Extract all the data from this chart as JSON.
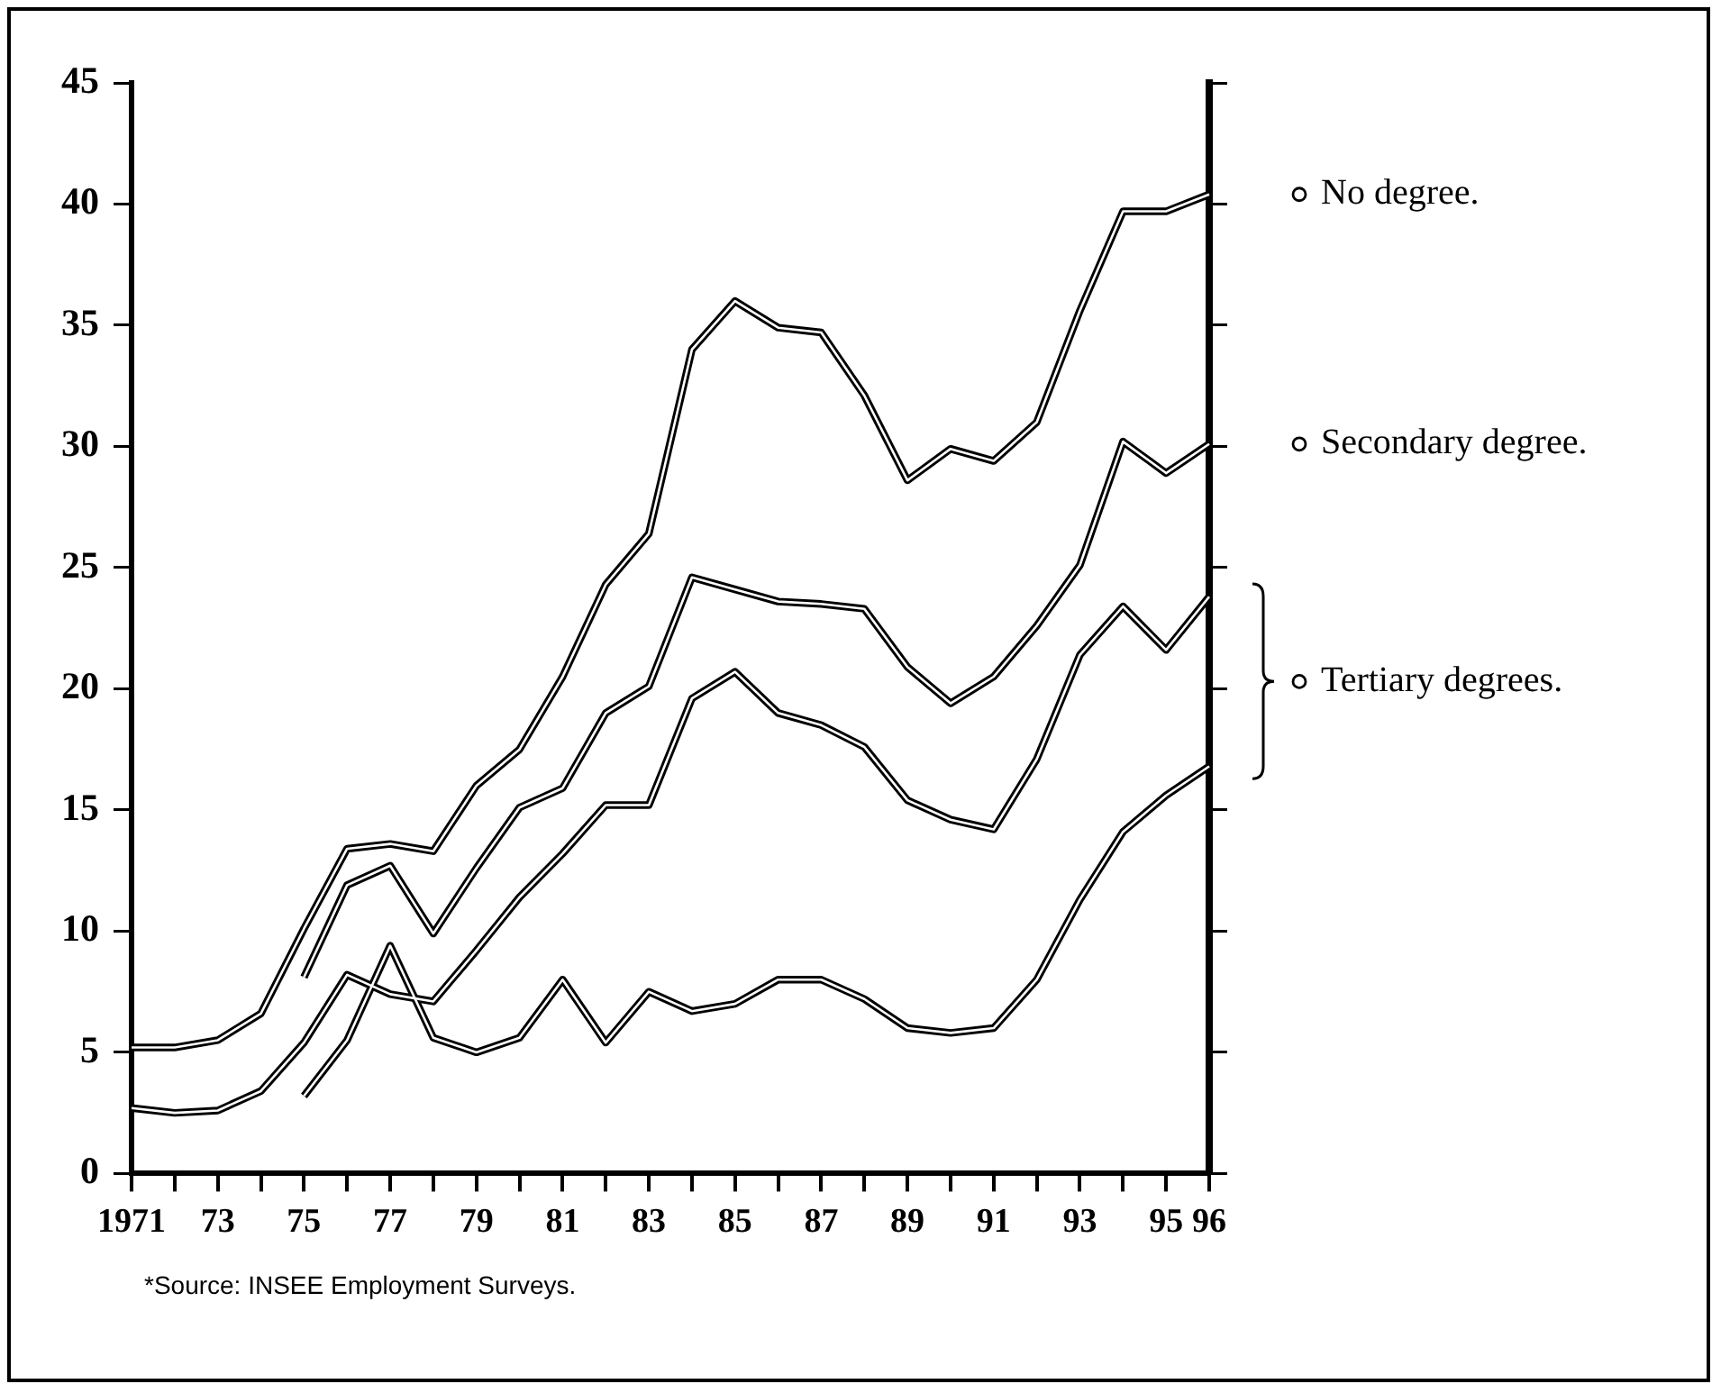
{
  "chart_data": {
    "type": "line",
    "x": [
      1971,
      1972,
      1973,
      1974,
      1975,
      1976,
      1977,
      1978,
      1979,
      1980,
      1981,
      1982,
      1983,
      1984,
      1985,
      1986,
      1987,
      1988,
      1989,
      1990,
      1991,
      1992,
      1993,
      1994,
      1995,
      1996
    ],
    "series": [
      {
        "name": "No degree.",
        "color": "#000000",
        "values": [
          5.2,
          5.2,
          5.5,
          6.6,
          10.1,
          13.4,
          13.6,
          13.3,
          16,
          17.5,
          20.5,
          24.3,
          26.4,
          34,
          36,
          34.9,
          34.7,
          32.1,
          28.6,
          29.9,
          29.4,
          31,
          35.6,
          39.7,
          39.7,
          40.4
        ]
      },
      {
        "name": "Secondary degree.",
        "color": "#000000",
        "values": [
          null,
          null,
          null,
          null,
          8.1,
          11.9,
          12.7,
          9.9,
          12.6,
          15.1,
          15.9,
          19,
          20.1,
          24.6,
          24.1,
          23.6,
          23.5,
          23.3,
          20.9,
          19.4,
          20.5,
          22.6,
          25.1,
          30.2,
          28.9,
          30.1
        ]
      },
      {
        "name": "Tertiary degrees.",
        "color": "#000000",
        "values": [
          2.7,
          2.5,
          2.6,
          3.4,
          5.4,
          8.2,
          7.4,
          7.1,
          9.2,
          11.4,
          13.2,
          15.2,
          15.2,
          19.6,
          20.7,
          19,
          18.5,
          17.6,
          15.4,
          14.6,
          14.2,
          17.1,
          21.4,
          23.4,
          21.6,
          23.8
        ]
      },
      {
        "color": "#000000",
        "values": [
          null,
          null,
          null,
          null,
          3.2,
          5.5,
          9.4,
          5.6,
          5,
          5.6,
          8,
          5.4,
          7.5,
          6.7,
          7,
          8,
          8,
          7.2,
          6,
          5.8,
          6,
          8,
          11.3,
          14.1,
          15.6,
          16.8
        ]
      }
    ],
    "xlim": [
      1971,
      1996
    ],
    "xticks": [
      {
        "value": 1971,
        "label": "1971"
      },
      {
        "value": 1972,
        "label": null
      },
      {
        "value": 1973,
        "label": "73"
      },
      {
        "value": 1974,
        "label": null
      },
      {
        "value": 1975,
        "label": "75"
      },
      {
        "value": 1976,
        "label": null
      },
      {
        "value": 1977,
        "label": "77"
      },
      {
        "value": 1978,
        "label": null
      },
      {
        "value": 1979,
        "label": "79"
      },
      {
        "value": 1980,
        "label": null
      },
      {
        "value": 1981,
        "label": "81"
      },
      {
        "value": 1982,
        "label": null
      },
      {
        "value": 1983,
        "label": "83"
      },
      {
        "value": 1984,
        "label": null
      },
      {
        "value": 1985,
        "label": "85"
      },
      {
        "value": 1986,
        "label": null
      },
      {
        "value": 1987,
        "label": "87"
      },
      {
        "value": 1988,
        "label": null
      },
      {
        "value": 1989,
        "label": "89"
      },
      {
        "value": 1990,
        "label": null
      },
      {
        "value": 1991,
        "label": "91"
      },
      {
        "value": 1992,
        "label": null
      },
      {
        "value": 1993,
        "label": "93"
      },
      {
        "value": 1994,
        "label": null
      },
      {
        "value": 1995,
        "label": "95"
      },
      {
        "value": 1996,
        "label": "96"
      }
    ],
    "ylim": [
      0,
      45
    ],
    "yticks": [
      0,
      5,
      10,
      15,
      20,
      25,
      30,
      35,
      40,
      45
    ],
    "grid": false,
    "legend": "right",
    "marker": "none",
    "line_style": "solid",
    "annotations": [
      "*Source: INSEE Employment Surveys."
    ]
  }
}
